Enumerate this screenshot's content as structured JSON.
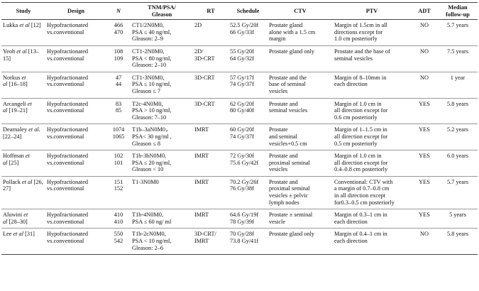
{
  "table": {
    "header": [
      [
        "Study"
      ],
      [
        "Design"
      ],
      [
        "N"
      ],
      [
        "TNM/PSA/",
        "Gleason"
      ],
      [
        "RT"
      ],
      [
        "Schedule"
      ],
      [
        "CTV"
      ],
      [
        "PTV"
      ],
      [
        "ADT"
      ],
      [
        "Median",
        "follow-up"
      ]
    ],
    "rows": [
      [
        {
          "name": "Lukka",
          "etal": "et al",
          "ref": "[12]"
        },
        [
          "Hypofractionated",
          "vs.conventional"
        ],
        [
          "466",
          "470"
        ],
        [
          "CT1/2N0M0,",
          "PSA ≤ 40 ng/ml,",
          "Gleason: 2–9"
        ],
        [
          "2D"
        ],
        [
          "52.5 Gy/20f",
          "66 Gy/33f"
        ],
        [
          "Prostate gland",
          "alone with a 1.5 cm",
          "margin"
        ],
        [
          "Margin of 1.5cm in all",
          "directions except for",
          "1.0 cm posteriorly"
        ],
        [
          "NO"
        ],
        [
          "5.7 years"
        ]
      ],
      [
        {
          "name": "Yeoh",
          "etal": "et al",
          "ref": "[13–15]"
        },
        [
          "Hypofractionated",
          "vs.conventional"
        ],
        [
          "108",
          "109"
        ],
        [
          "CT1-2N0M0,",
          "PSA < 80 ng/ml,",
          "Gleason: 2–10"
        ],
        [
          "2D/",
          "3D-CRT"
        ],
        [
          "55 Gy/20f",
          "64 Gy/32f"
        ],
        [
          "Prostate gland only"
        ],
        [
          "Prostate and the base of",
          "seminal vesicles"
        ],
        [
          "NO"
        ],
        [
          "7.5 years"
        ]
      ],
      [
        {
          "name": "Norkus",
          "etal": "et al",
          "ref": "[16–18]"
        },
        [
          "Hypofractionated",
          "vs.conventional"
        ],
        [
          "47",
          "44"
        ],
        [
          "CT1-3N0M0,",
          "PSA ≤ 10 ng/ml,",
          "Gleason ≤  7"
        ],
        [
          "3D-CRT"
        ],
        [
          "57 Gy/17f",
          "74 Gy/37f"
        ],
        [
          "Prostate and the",
          "base of seminal",
          "vesicles"
        ],
        [
          "Margin of 8–10mm in",
          "each direction"
        ],
        [
          "NO"
        ],
        [
          "1 year"
        ]
      ],
      [
        {
          "name": "Arcangeli",
          "etal": "et al",
          "ref": "[19–21]"
        },
        [
          "Hypofractionated",
          "vs.conventional"
        ],
        [
          "83",
          "85"
        ],
        [
          "T2c-4N0M0,",
          "PSA > 10 ng/ml,",
          "Gleason: 7–10"
        ],
        [
          "3D-CRT"
        ],
        [
          "62 Gy/20f",
          "80 Gy/40f"
        ],
        [
          "Prostate and",
          "seminal vesicles"
        ],
        [
          "Margin of 1.0 cm in",
          "all direction except for",
          "0.6 cm posteriorly"
        ],
        [
          "YES"
        ],
        [
          "5.8 years"
        ]
      ],
      [
        {
          "name": "Dearnaley",
          "etal": "et al.",
          "ref": "[22–24]"
        },
        [
          "Hypofractionated",
          "vs.conventional"
        ],
        [
          "1074",
          "1065"
        ],
        [
          "T1b–3aN0M0，",
          "PSA< 30 ng/ml ,",
          "Gleason ≤ 8"
        ],
        [
          "IMRT"
        ],
        [
          "60 Gy/20f",
          "74 Gy/37f"
        ],
        [
          "Prostate",
          "and seminal",
          "vesicles+0.5 cm"
        ],
        [
          "Margin of 1–1.5 cm in",
          "all direction except for",
          "0.5 cm posteriorly"
        ],
        [
          "YES"
        ],
        [
          "5.2 years"
        ]
      ],
      [
        {
          "name": "Hoffman",
          "etal": "et al",
          "ref": "[25]"
        },
        [
          "Hypofractionated",
          "vs.conventional"
        ],
        [
          "102",
          "101"
        ],
        [
          "T1b-3bN0M0,",
          "PSA ≤ 20 ng/ml,",
          "Gleason < 10"
        ],
        [
          "IMRT"
        ],
        [
          "72 Gy/30f",
          "75.6 Gy/42f"
        ],
        [
          "Prostate and",
          "proximal seminal",
          "vesicles"
        ],
        [
          "Margin of 1.0 cm  in",
          "all direction except for",
          "0.4–0.8 cm posteriorly"
        ],
        [
          "YES"
        ],
        [
          "6.0 years"
        ]
      ],
      [
        {
          "name": "Pollack",
          "etal": "et al",
          "ref": "[26, 27]"
        },
        [
          "Hypofractionated",
          "vs.conventional"
        ],
        [
          "151",
          "152"
        ],
        [
          "T1-3N0M0"
        ],
        [
          "IMRT"
        ],
        [
          "70.2 Gy/26f",
          "76 Gy/38f"
        ],
        [
          "Prostate and",
          "proximal seminal",
          "vesicles ± pelvic",
          "lymph nodes"
        ],
        [
          "Conventional: CTV with",
          "a margin of 0.7–0.8 cm",
          "in all direction except",
          "for0.3–0.5 cm posteriorly"
        ],
        [
          "YES"
        ],
        [
          "5.7 years"
        ]
      ],
      [
        {
          "name": "Aluwini",
          "etal": "et al",
          "ref": "[28–30]"
        },
        [
          "Hypofractionated",
          "vs.conventional"
        ],
        [
          "410",
          "410"
        ],
        [
          "T1b-4N0M0,",
          "PSA ≤ 60 ng/ ml"
        ],
        [
          "IMRT"
        ],
        [
          "64.6 Gy/19f",
          "78 Gy/39f"
        ],
        [
          "Prostate ± seminal",
          "vesicle"
        ],
        [
          "Margin of 0.3–1 cm in",
          "each direction"
        ],
        [
          "YES"
        ],
        [
          "5 years"
        ]
      ],
      [
        {
          "name": "Lee",
          "etal": "et al",
          "ref": "[31]"
        },
        [
          "Hypofractionated",
          "vs.conventional"
        ],
        [
          "550",
          "542"
        ],
        [
          "T1b-2cN0M0,",
          "PSA < 10 ng/ml,",
          "Gleason: 2–6"
        ],
        [
          "3D-CRT/",
          "IMRT"
        ],
        [
          "70 Gy/28f",
          "73.8 Gy/41f"
        ],
        [
          "Prostate gland only"
        ],
        [
          "Margin of 0.4–1 cm in",
          "each direction"
        ],
        [
          "NO"
        ],
        [
          "5.8 years"
        ]
      ]
    ]
  }
}
